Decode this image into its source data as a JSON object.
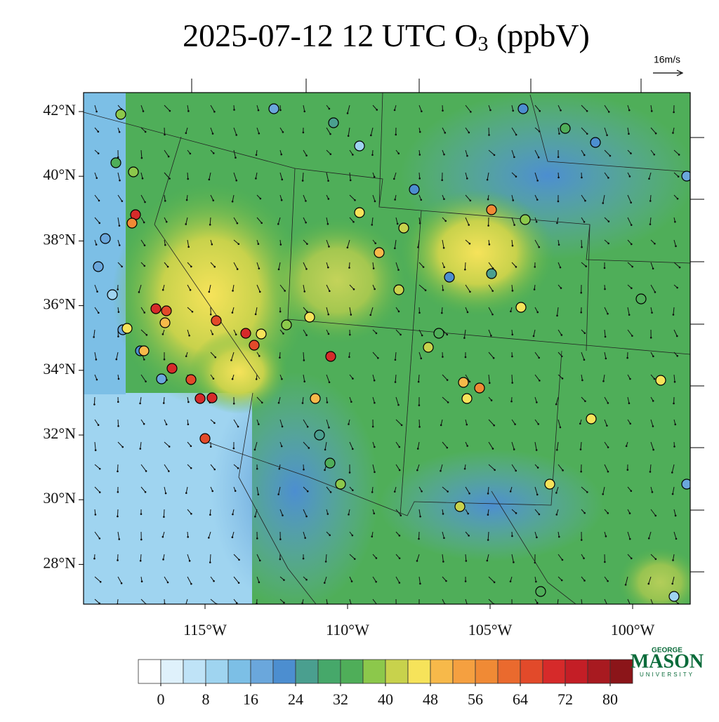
{
  "title": {
    "main": "2025-07-12 12 UTC O",
    "sub": "3",
    "unit": " (ppbV)"
  },
  "wind_scale": "16m/s",
  "map": {
    "lat_ticks": [
      {
        "value": 42,
        "label": "42°N"
      },
      {
        "value": 40,
        "label": "40°N"
      },
      {
        "value": 38,
        "label": "38°N"
      },
      {
        "value": 36,
        "label": "36°N"
      },
      {
        "value": 34,
        "label": "34°N"
      },
      {
        "value": 32,
        "label": "32°N"
      },
      {
        "value": 30,
        "label": "30°N"
      },
      {
        "value": 28,
        "label": "28°N"
      }
    ],
    "lon_ticks": [
      {
        "value": -115,
        "label": "115°W"
      },
      {
        "value": -110,
        "label": "110°W"
      },
      {
        "value": -105,
        "label": "105°W"
      },
      {
        "value": -100,
        "label": "100°W"
      }
    ]
  },
  "colorbar": {
    "ticks": [
      0,
      8,
      16,
      24,
      32,
      40,
      48,
      56,
      64,
      72,
      80
    ]
  },
  "logo": {
    "top": "GEORGE",
    "main": "MASON",
    "bottom": "UNIVERSITY"
  }
}
